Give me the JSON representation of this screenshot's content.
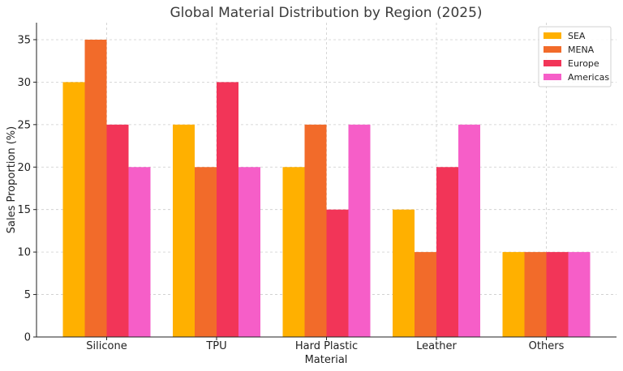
{
  "chart_data": {
    "type": "bar",
    "title": "Global Material Distribution by Region (2025)",
    "xlabel": "Material",
    "ylabel": "Sales Proportion (%)",
    "categories": [
      "Silicone",
      "TPU",
      "Hard Plastic",
      "Leather",
      "Others"
    ],
    "series": [
      {
        "name": "SEA",
        "color": "#ffb000",
        "values": [
          30,
          25,
          20,
          15,
          10
        ]
      },
      {
        "name": "MENA",
        "color": "#f26b2a",
        "values": [
          35,
          20,
          25,
          10,
          10
        ]
      },
      {
        "name": "Europe",
        "color": "#f23558",
        "values": [
          25,
          30,
          15,
          20,
          10
        ]
      },
      {
        "name": "Americas",
        "color": "#f65ec8",
        "values": [
          20,
          20,
          25,
          25,
          10
        ]
      }
    ],
    "ylim": [
      0,
      37
    ],
    "yticks": [
      0,
      5,
      10,
      15,
      20,
      25,
      30,
      35
    ],
    "grid": true,
    "legend_position": "top-right"
  }
}
